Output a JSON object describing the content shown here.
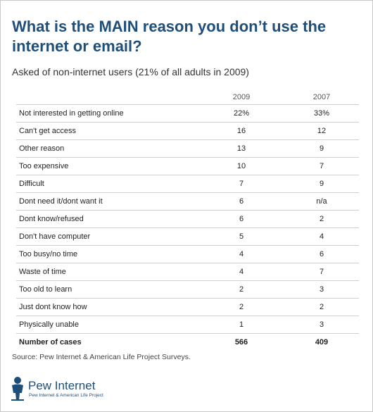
{
  "title": "What is the MAIN reason you don’t use the internet or email?",
  "subtitle": "Asked of non-internet users (21% of all adults in 2009)",
  "source": "Source: Pew Internet & American Life Project Surveys.",
  "logo": {
    "name": "Pew Internet",
    "tagline": "Pew Internet & American Life Project"
  },
  "chart_data": {
    "type": "table",
    "title": "What is the MAIN reason you don’t use the internet or email?",
    "subtitle": "Asked of non-internet users (21% of all adults in 2009)",
    "columns": [
      "2009",
      "2007"
    ],
    "rows": [
      {
        "label": "Not interested in getting online",
        "v2009": "22%",
        "v2007": "33%"
      },
      {
        "label": "Can't get access",
        "v2009": "16",
        "v2007": "12"
      },
      {
        "label": "Other reason",
        "v2009": "13",
        "v2007": "9"
      },
      {
        "label": "Too expensive",
        "v2009": "10",
        "v2007": "7"
      },
      {
        "label": "Difficult",
        "v2009": "7",
        "v2007": "9"
      },
      {
        "label": "Dont need it/dont want it",
        "v2009": "6",
        "v2007": "n/a"
      },
      {
        "label": "Dont know/refused",
        "v2009": "6",
        "v2007": "2"
      },
      {
        "label": "Don't have computer",
        "v2009": "5",
        "v2007": "4"
      },
      {
        "label": "Too busy/no time",
        "v2009": "4",
        "v2007": "6"
      },
      {
        "label": "Waste of time",
        "v2009": "4",
        "v2007": "7"
      },
      {
        "label": "Too old to learn",
        "v2009": "2",
        "v2007": "3"
      },
      {
        "label": "Just dont know how",
        "v2009": "2",
        "v2007": "2"
      },
      {
        "label": "Physically unable",
        "v2009": "1",
        "v2007": "3"
      }
    ],
    "total": {
      "label": "Number of cases",
      "v2009": "566",
      "v2007": "409"
    }
  }
}
